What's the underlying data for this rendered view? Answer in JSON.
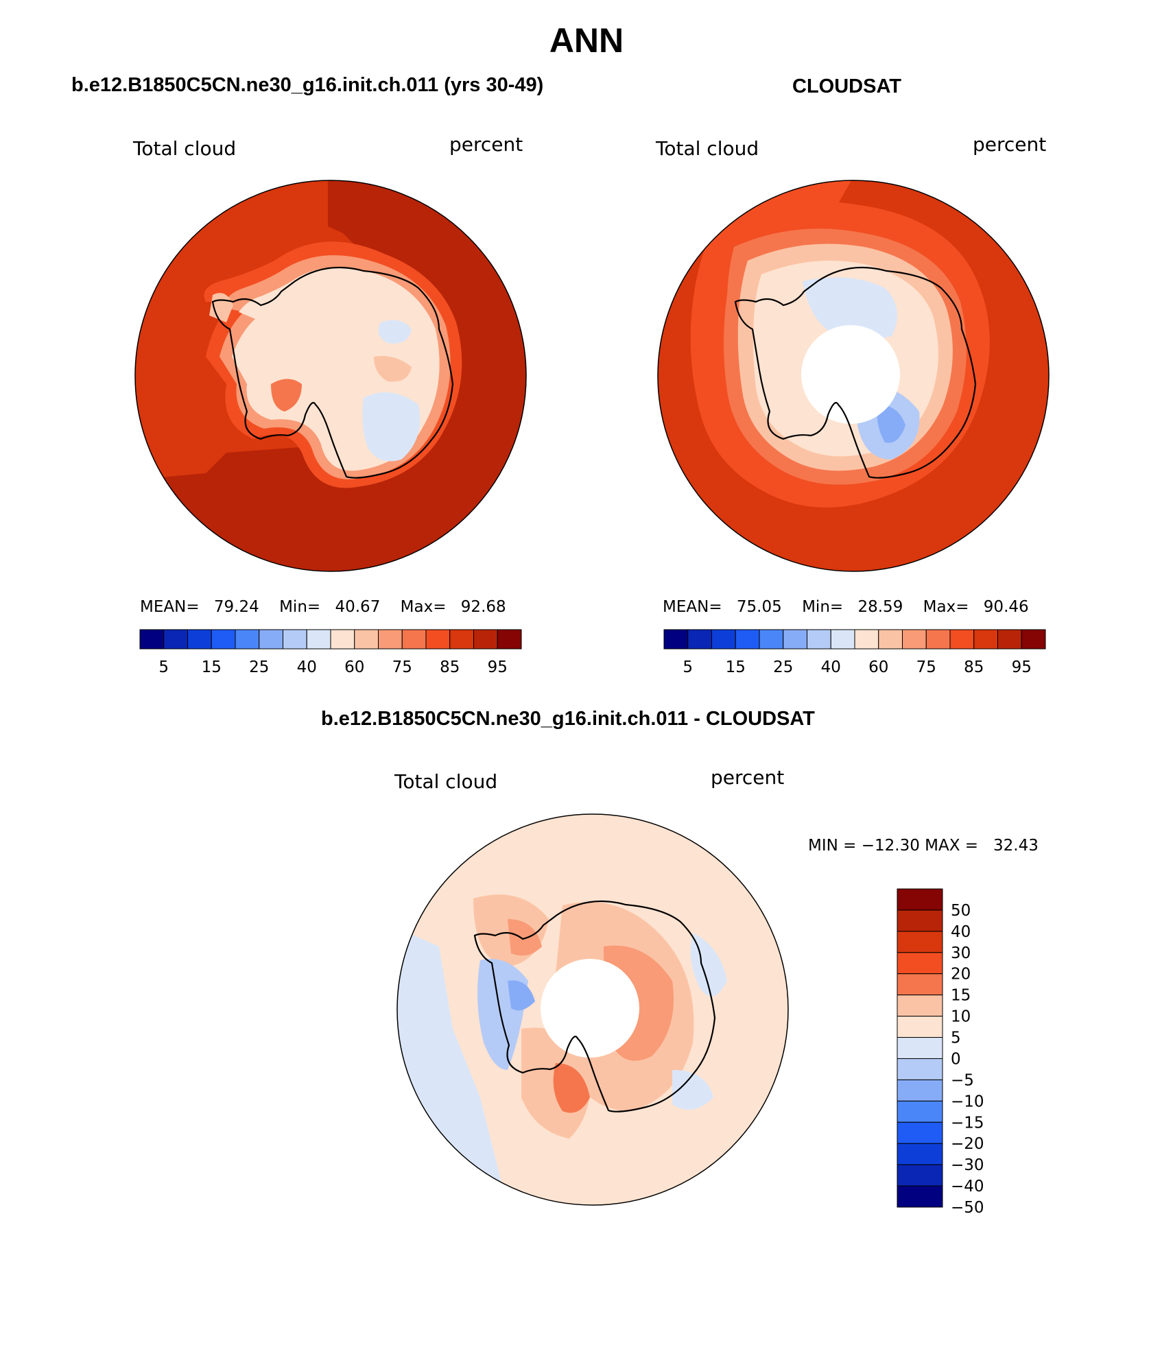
{
  "figure_title": "ANN",
  "panels": {
    "model": {
      "title": "b.e12.B1850C5CN.ne30_g16.init.ch.011 (yrs 30-49)",
      "left_label": "Total cloud",
      "right_label": "percent",
      "stats": {
        "mean_label": "MEAN=",
        "mean": "79.24",
        "min_label": "Min=",
        "min": "40.67",
        "max_label": "Max=",
        "max": "92.68"
      }
    },
    "obs": {
      "title": "CLOUDSAT",
      "left_label": "Total cloud",
      "right_label": "percent",
      "stats": {
        "mean_label": "MEAN=",
        "mean": "75.05",
        "min_label": "Min=",
        "min": "28.59",
        "max_label": "Max=",
        "max": "90.46"
      }
    },
    "diff": {
      "title": "b.e12.B1850C5CN.ne30_g16.init.ch.011 - CLOUDSAT",
      "left_label": "Total cloud",
      "right_label": "percent",
      "minmax_text": "MIN = −12.30 MAX =   32.43"
    }
  },
  "colorbar_abs": {
    "colors": [
      "#000080",
      "#0a26b5",
      "#0d3fd8",
      "#1f5cf5",
      "#4a86f7",
      "#87acf7",
      "#b4cbf7",
      "#dae6f8",
      "#fde3d1",
      "#fbc3a5",
      "#f89b76",
      "#f5764d",
      "#f24e22",
      "#d9370d",
      "#b82408",
      "#850404"
    ],
    "tick_labels": [
      "5",
      "15",
      "25",
      "40",
      "60",
      "75",
      "85",
      "95"
    ]
  },
  "colorbar_diff": {
    "colors": [
      "#850404",
      "#b82408",
      "#d9370d",
      "#f24e22",
      "#f5764d",
      "#fbc3a5",
      "#fde3d1",
      "#dae6f8",
      "#b4cbf7",
      "#87acf7",
      "#4a86f7",
      "#1f5cf5",
      "#0d3fd8",
      "#0a26b5",
      "#000080"
    ],
    "tick_labels": [
      "50",
      "40",
      "30",
      "20",
      "15",
      "10",
      "5",
      "0",
      "−5",
      "−10",
      "−15",
      "−20",
      "−30",
      "−40",
      "−50"
    ]
  }
}
